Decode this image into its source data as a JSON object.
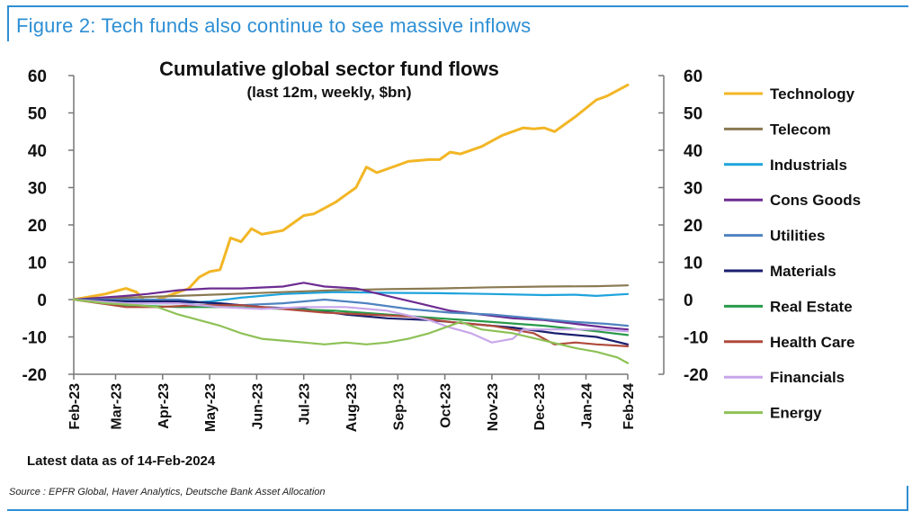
{
  "figure_title": "Figure 2: Tech funds also continue to see massive inflows",
  "source": "Source : EPFR Global, Haver Analytics, Deutsche Bank Asset Allocation",
  "chart_data": {
    "type": "line",
    "title": "Cumulative global sector fund flows",
    "subtitle": "(last 12m, weekly, $bn)",
    "note": "Latest data as of 14-Feb-2024",
    "ylim": [
      -20,
      60
    ],
    "yticks": [
      "60",
      "50",
      "40",
      "30",
      "20",
      "10",
      "0",
      "-10",
      "-20"
    ],
    "ytick_values": [
      60,
      50,
      40,
      30,
      20,
      10,
      0,
      -10,
      -20
    ],
    "xlim": [
      0,
      53
    ],
    "xtick_labels": [
      "Feb-23",
      "Mar-23",
      "Apr-23",
      "May-23",
      "Jun-23",
      "Jul-23",
      "Aug-23",
      "Sep-23",
      "Oct-23",
      "Nov-23",
      "Dec-23",
      "Jan-24",
      "Feb-24"
    ],
    "xtick_positions": [
      0,
      4,
      8.5,
      13,
      17.5,
      22,
      26.5,
      31,
      35.5,
      40,
      44.5,
      49,
      53
    ],
    "legend_position": "right",
    "series": [
      {
        "name": "Technology",
        "color": "#f2b625",
        "points": [
          [
            0,
            0
          ],
          [
            3,
            1.5
          ],
          [
            5,
            3
          ],
          [
            6,
            2
          ],
          [
            7,
            -1
          ],
          [
            9,
            1
          ],
          [
            11,
            3
          ],
          [
            12,
            6
          ],
          [
            13,
            7.5
          ],
          [
            14,
            8
          ],
          [
            15,
            16.5
          ],
          [
            16,
            15.5
          ],
          [
            17,
            19
          ],
          [
            18,
            17.5
          ],
          [
            20,
            18.5
          ],
          [
            22,
            22.5
          ],
          [
            23,
            23
          ],
          [
            25,
            26
          ],
          [
            27,
            30
          ],
          [
            28,
            35.5
          ],
          [
            29,
            34
          ],
          [
            31,
            36
          ],
          [
            32,
            37
          ],
          [
            34,
            37.5
          ],
          [
            35,
            37.5
          ],
          [
            36,
            39.5
          ],
          [
            37,
            39
          ],
          [
            39,
            41
          ],
          [
            41,
            44
          ],
          [
            43,
            46
          ],
          [
            44,
            45.7
          ],
          [
            45,
            46
          ],
          [
            46,
            45
          ],
          [
            48,
            49
          ],
          [
            50,
            53.5
          ],
          [
            51,
            54.5
          ],
          [
            53,
            57.5
          ]
        ]
      },
      {
        "name": "Telecom",
        "color": "#8a7a52",
        "points": [
          [
            0,
            0
          ],
          [
            5,
            0.5
          ],
          [
            10,
            1
          ],
          [
            15,
            1.5
          ],
          [
            20,
            2
          ],
          [
            25,
            2.5
          ],
          [
            30,
            2.8
          ],
          [
            35,
            3
          ],
          [
            40,
            3.3
          ],
          [
            45,
            3.5
          ],
          [
            50,
            3.6
          ],
          [
            53,
            3.8
          ]
        ]
      },
      {
        "name": "Industrials",
        "color": "#1ea3dc",
        "points": [
          [
            0,
            0
          ],
          [
            5,
            -1
          ],
          [
            10,
            -1
          ],
          [
            13,
            -0.5
          ],
          [
            16,
            0.5
          ],
          [
            20,
            1.5
          ],
          [
            25,
            2
          ],
          [
            30,
            1.8
          ],
          [
            35,
            1.7
          ],
          [
            40,
            1.5
          ],
          [
            45,
            1.2
          ],
          [
            48,
            1.3
          ],
          [
            50,
            1
          ],
          [
            53,
            1.5
          ]
        ]
      },
      {
        "name": "Cons Goods",
        "color": "#6d2c91",
        "points": [
          [
            0,
            0
          ],
          [
            5,
            1
          ],
          [
            7,
            1.5
          ],
          [
            10,
            2.5
          ],
          [
            13,
            3
          ],
          [
            16,
            3
          ],
          [
            20,
            3.5
          ],
          [
            22,
            4.5
          ],
          [
            24,
            3.5
          ],
          [
            27,
            3
          ],
          [
            30,
            1
          ],
          [
            33,
            -1
          ],
          [
            36,
            -3
          ],
          [
            39,
            -4
          ],
          [
            42,
            -5
          ],
          [
            45,
            -5.5
          ],
          [
            48,
            -6.5
          ],
          [
            51,
            -7.5
          ],
          [
            53,
            -8
          ]
        ]
      },
      {
        "name": "Utilities",
        "color": "#4f83c0",
        "points": [
          [
            0,
            0
          ],
          [
            5,
            0
          ],
          [
            10,
            0
          ],
          [
            13,
            -1
          ],
          [
            16,
            -1.5
          ],
          [
            20,
            -1
          ],
          [
            24,
            0
          ],
          [
            28,
            -1
          ],
          [
            32,
            -2.5
          ],
          [
            36,
            -3.5
          ],
          [
            40,
            -4
          ],
          [
            44,
            -5
          ],
          [
            48,
            -6
          ],
          [
            51,
            -6.5
          ],
          [
            53,
            -7
          ]
        ]
      },
      {
        "name": "Materials",
        "color": "#1a1f6e",
        "points": [
          [
            0,
            0
          ],
          [
            5,
            -0.5
          ],
          [
            10,
            -0.5
          ],
          [
            14,
            -1
          ],
          [
            18,
            -2
          ],
          [
            22,
            -2.5
          ],
          [
            26,
            -4
          ],
          [
            30,
            -5
          ],
          [
            34,
            -5.5
          ],
          [
            38,
            -6.5
          ],
          [
            42,
            -7.5
          ],
          [
            46,
            -9
          ],
          [
            50,
            -10
          ],
          [
            53,
            -12
          ]
        ]
      },
      {
        "name": "Real Estate",
        "color": "#2a9a4a",
        "points": [
          [
            0,
            0
          ],
          [
            5,
            -1.5
          ],
          [
            10,
            -2
          ],
          [
            15,
            -2
          ],
          [
            20,
            -2.5
          ],
          [
            25,
            -3
          ],
          [
            30,
            -4
          ],
          [
            35,
            -5
          ],
          [
            40,
            -6
          ],
          [
            45,
            -7
          ],
          [
            50,
            -8.5
          ],
          [
            53,
            -9.5
          ]
        ]
      },
      {
        "name": "Health Care",
        "color": "#b04a3c",
        "points": [
          [
            0,
            0
          ],
          [
            5,
            -2
          ],
          [
            8,
            -2
          ],
          [
            12,
            -1.5
          ],
          [
            16,
            -1.5
          ],
          [
            20,
            -2.5
          ],
          [
            24,
            -3.5
          ],
          [
            28,
            -4
          ],
          [
            32,
            -4.5
          ],
          [
            36,
            -6
          ],
          [
            40,
            -7
          ],
          [
            44,
            -9
          ],
          [
            46,
            -12
          ],
          [
            48,
            -11.5
          ],
          [
            50,
            -12
          ],
          [
            53,
            -12.5
          ]
        ]
      },
      {
        "name": "Financials",
        "color": "#c8a6ea",
        "points": [
          [
            0,
            0
          ],
          [
            5,
            -1
          ],
          [
            10,
            -1
          ],
          [
            14,
            -2
          ],
          [
            18,
            -2.5
          ],
          [
            22,
            -2
          ],
          [
            26,
            -2
          ],
          [
            30,
            -3
          ],
          [
            34,
            -5.5
          ],
          [
            36,
            -7.5
          ],
          [
            38,
            -9
          ],
          [
            40,
            -11.5
          ],
          [
            42,
            -10.5
          ],
          [
            43,
            -8
          ],
          [
            46,
            -8
          ],
          [
            50,
            -8
          ],
          [
            53,
            -8.5
          ]
        ]
      },
      {
        "name": "Energy",
        "color": "#8ec156",
        "points": [
          [
            0,
            0
          ],
          [
            3,
            -1
          ],
          [
            6,
            -1.5
          ],
          [
            8,
            -2
          ],
          [
            10,
            -4
          ],
          [
            12,
            -5.5
          ],
          [
            14,
            -7
          ],
          [
            16,
            -9
          ],
          [
            18,
            -10.5
          ],
          [
            20,
            -11
          ],
          [
            22,
            -11.5
          ],
          [
            24,
            -12
          ],
          [
            26,
            -11.5
          ],
          [
            28,
            -12
          ],
          [
            30,
            -11.5
          ],
          [
            32,
            -10.5
          ],
          [
            34,
            -9
          ],
          [
            35,
            -8
          ],
          [
            37,
            -6
          ],
          [
            39,
            -8
          ],
          [
            42,
            -9
          ],
          [
            45,
            -11
          ],
          [
            48,
            -13
          ],
          [
            50,
            -14
          ],
          [
            52,
            -15.5
          ],
          [
            53,
            -17
          ]
        ]
      }
    ]
  }
}
